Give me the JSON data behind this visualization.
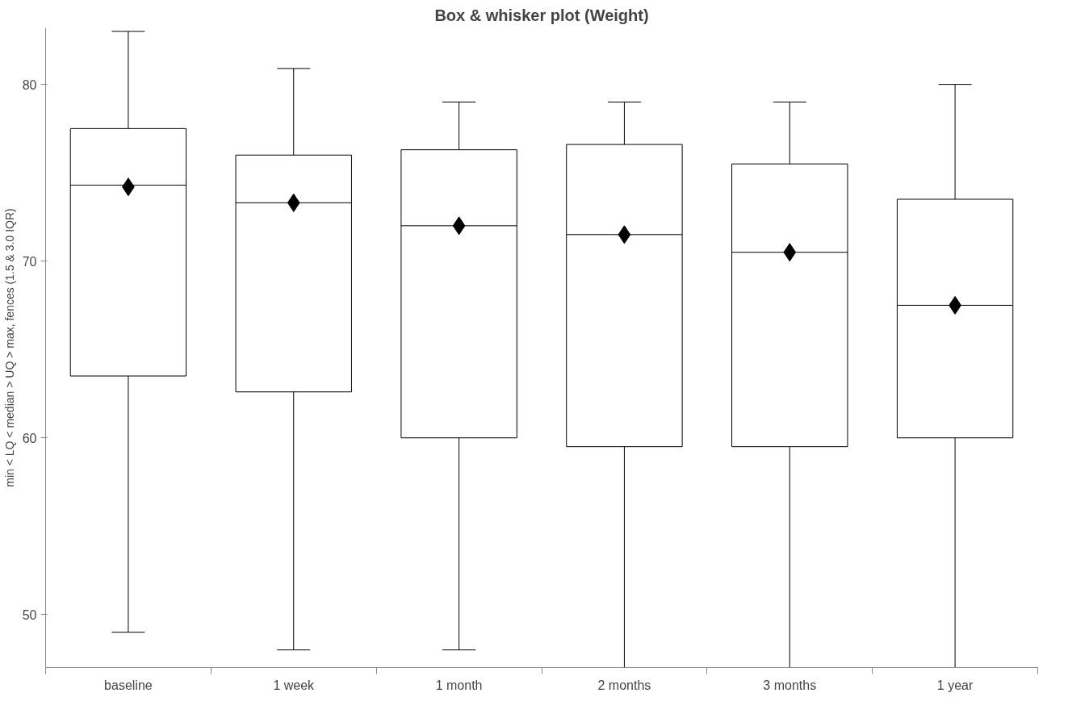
{
  "chart_data": {
    "type": "box",
    "title": "Box & whisker plot (Weight)",
    "ylabel": "min < LQ < median > UQ > max, fences (1.5 & 3.0 IQR)",
    "categories": [
      "baseline",
      "1 week",
      "1 month",
      "2 months",
      "3 months",
      "1 year"
    ],
    "boxes": [
      {
        "low": 49.0,
        "q1": 63.5,
        "median": 74.3,
        "q3": 77.5,
        "high": 83.0,
        "mean": 74.2
      },
      {
        "low": 48.0,
        "q1": 62.6,
        "median": 73.3,
        "q3": 76.0,
        "high": 80.9,
        "mean": 73.3
      },
      {
        "low": 48.0,
        "q1": 60.0,
        "median": 72.0,
        "q3": 76.3,
        "high": 79.0,
        "mean": 72.0
      },
      {
        "low": 47.0,
        "q1": 59.5,
        "median": 71.5,
        "q3": 76.6,
        "high": 79.0,
        "mean": 71.5
      },
      {
        "low": 47.0,
        "q1": 59.5,
        "median": 70.5,
        "q3": 75.5,
        "high": 79.0,
        "mean": 70.5
      },
      {
        "low": 47.0,
        "q1": 60.0,
        "median": 67.5,
        "q3": 73.5,
        "high": 80.0,
        "mean": 67.5
      }
    ],
    "color": "#000000",
    "marker": "diamond",
    "grid": false,
    "ylim": [
      47,
      83.2
    ],
    "yticks": [
      50,
      60,
      70,
      80
    ]
  }
}
